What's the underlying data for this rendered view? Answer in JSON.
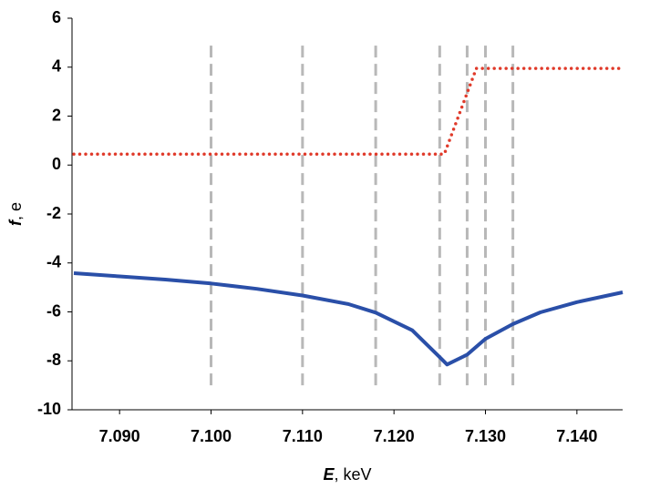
{
  "chart_data": {
    "type": "line",
    "xlabel": [
      "E",
      ", keV"
    ],
    "ylabel": [
      "f",
      ", e"
    ],
    "xlim": [
      7.085,
      7.145
    ],
    "xticks": [
      {
        "value": 7.09,
        "label": "7.090"
      },
      {
        "value": 7.1,
        "label": "7.100"
      },
      {
        "value": 7.11,
        "label": "7.110"
      },
      {
        "value": 7.12,
        "label": "7.120"
      },
      {
        "value": 7.13,
        "label": "7.130"
      },
      {
        "value": 7.14,
        "label": "7.140"
      }
    ],
    "ylim": [
      -10,
      6
    ],
    "yticks": [
      -10,
      -8,
      -6,
      -4,
      -2,
      0,
      2,
      4,
      6
    ],
    "vlines": [
      7.1,
      7.11,
      7.118,
      7.125,
      7.128,
      7.13,
      7.133
    ],
    "vline_ylim": [
      -9,
      5
    ],
    "vline_color": "#b8b8b8",
    "series": [
      {
        "color": "#2a4fa8",
        "style": "solid",
        "x": [
          7.085,
          7.09,
          7.095,
          7.1,
          7.105,
          7.11,
          7.115,
          7.118,
          7.122,
          7.125,
          7.1258,
          7.128,
          7.13,
          7.133,
          7.136,
          7.14,
          7.145
        ],
        "values": [
          -4.42,
          -4.55,
          -4.68,
          -4.84,
          -5.06,
          -5.33,
          -5.68,
          -6.03,
          -6.75,
          -7.85,
          -8.15,
          -7.75,
          -7.1,
          -6.5,
          -6.02,
          -5.6,
          -5.2
        ]
      },
      {
        "color": "#e03a2a",
        "style": "dotted",
        "x": [
          7.085,
          7.1255,
          7.129,
          7.145
        ],
        "values": [
          0.45,
          0.45,
          3.95,
          3.95
        ]
      }
    ]
  }
}
